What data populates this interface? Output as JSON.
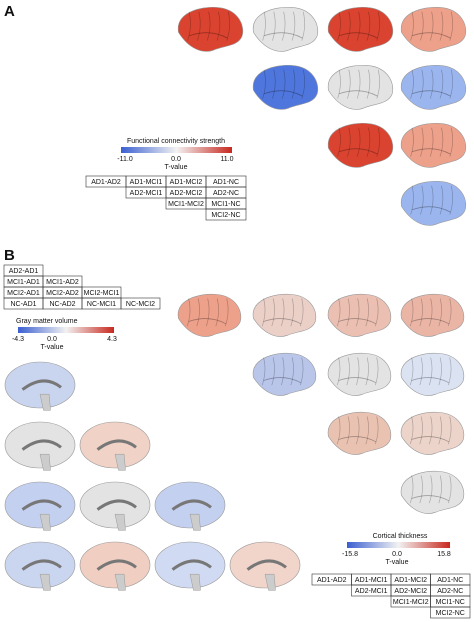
{
  "panel_a": {
    "label": "A",
    "colorbar": {
      "title": "Functional connectivity strength",
      "ticks": [
        "-11.0",
        "0.0",
        "11.0"
      ],
      "axis_label": "T-value"
    },
    "table": {
      "rows": [
        [
          "AD1-AD2",
          "AD1-MCI1",
          "AD1-MCI2",
          "AD1-NC"
        ],
        [
          "AD2-MCI1",
          "AD2-MCI2",
          "AD2-NC"
        ],
        [
          "MCI1-MCI2",
          "MCI1-NC"
        ],
        [
          "MCI2-NC"
        ]
      ]
    }
  },
  "panel_b": {
    "label": "B",
    "table": {
      "rows": [
        [
          "AD2-AD1"
        ],
        [
          "MCI1-AD1",
          "MCI1-AD2"
        ],
        [
          "MCI2-AD1",
          "MCI2-AD2",
          "MCI2-MCI1"
        ],
        [
          "NC-AD1",
          "NC-AD2",
          "NC-MCI1",
          "NC-MCI2"
        ]
      ]
    },
    "gray_matter_colorbar": {
      "title": "Gray matter volume",
      "ticks": [
        "-4.3",
        "0.0",
        "4.3"
      ],
      "axis_label": "T-value"
    },
    "cortical_colorbar": {
      "title": "Cortical thickness",
      "ticks": [
        "-15.8",
        "0.0",
        "15.8"
      ],
      "axis_label": "T-value"
    },
    "cortical_table": {
      "rows": [
        [
          "AD1-AD2",
          "AD1-MCI1",
          "AD1-MCI2",
          "AD1-NC"
        ],
        [
          "AD2-MCI1",
          "AD2-MCI2",
          "AD2-NC"
        ],
        [
          "MCI1-MCI2",
          "MCI1-NC"
        ],
        [
          "MCI2-NC"
        ]
      ]
    }
  }
}
